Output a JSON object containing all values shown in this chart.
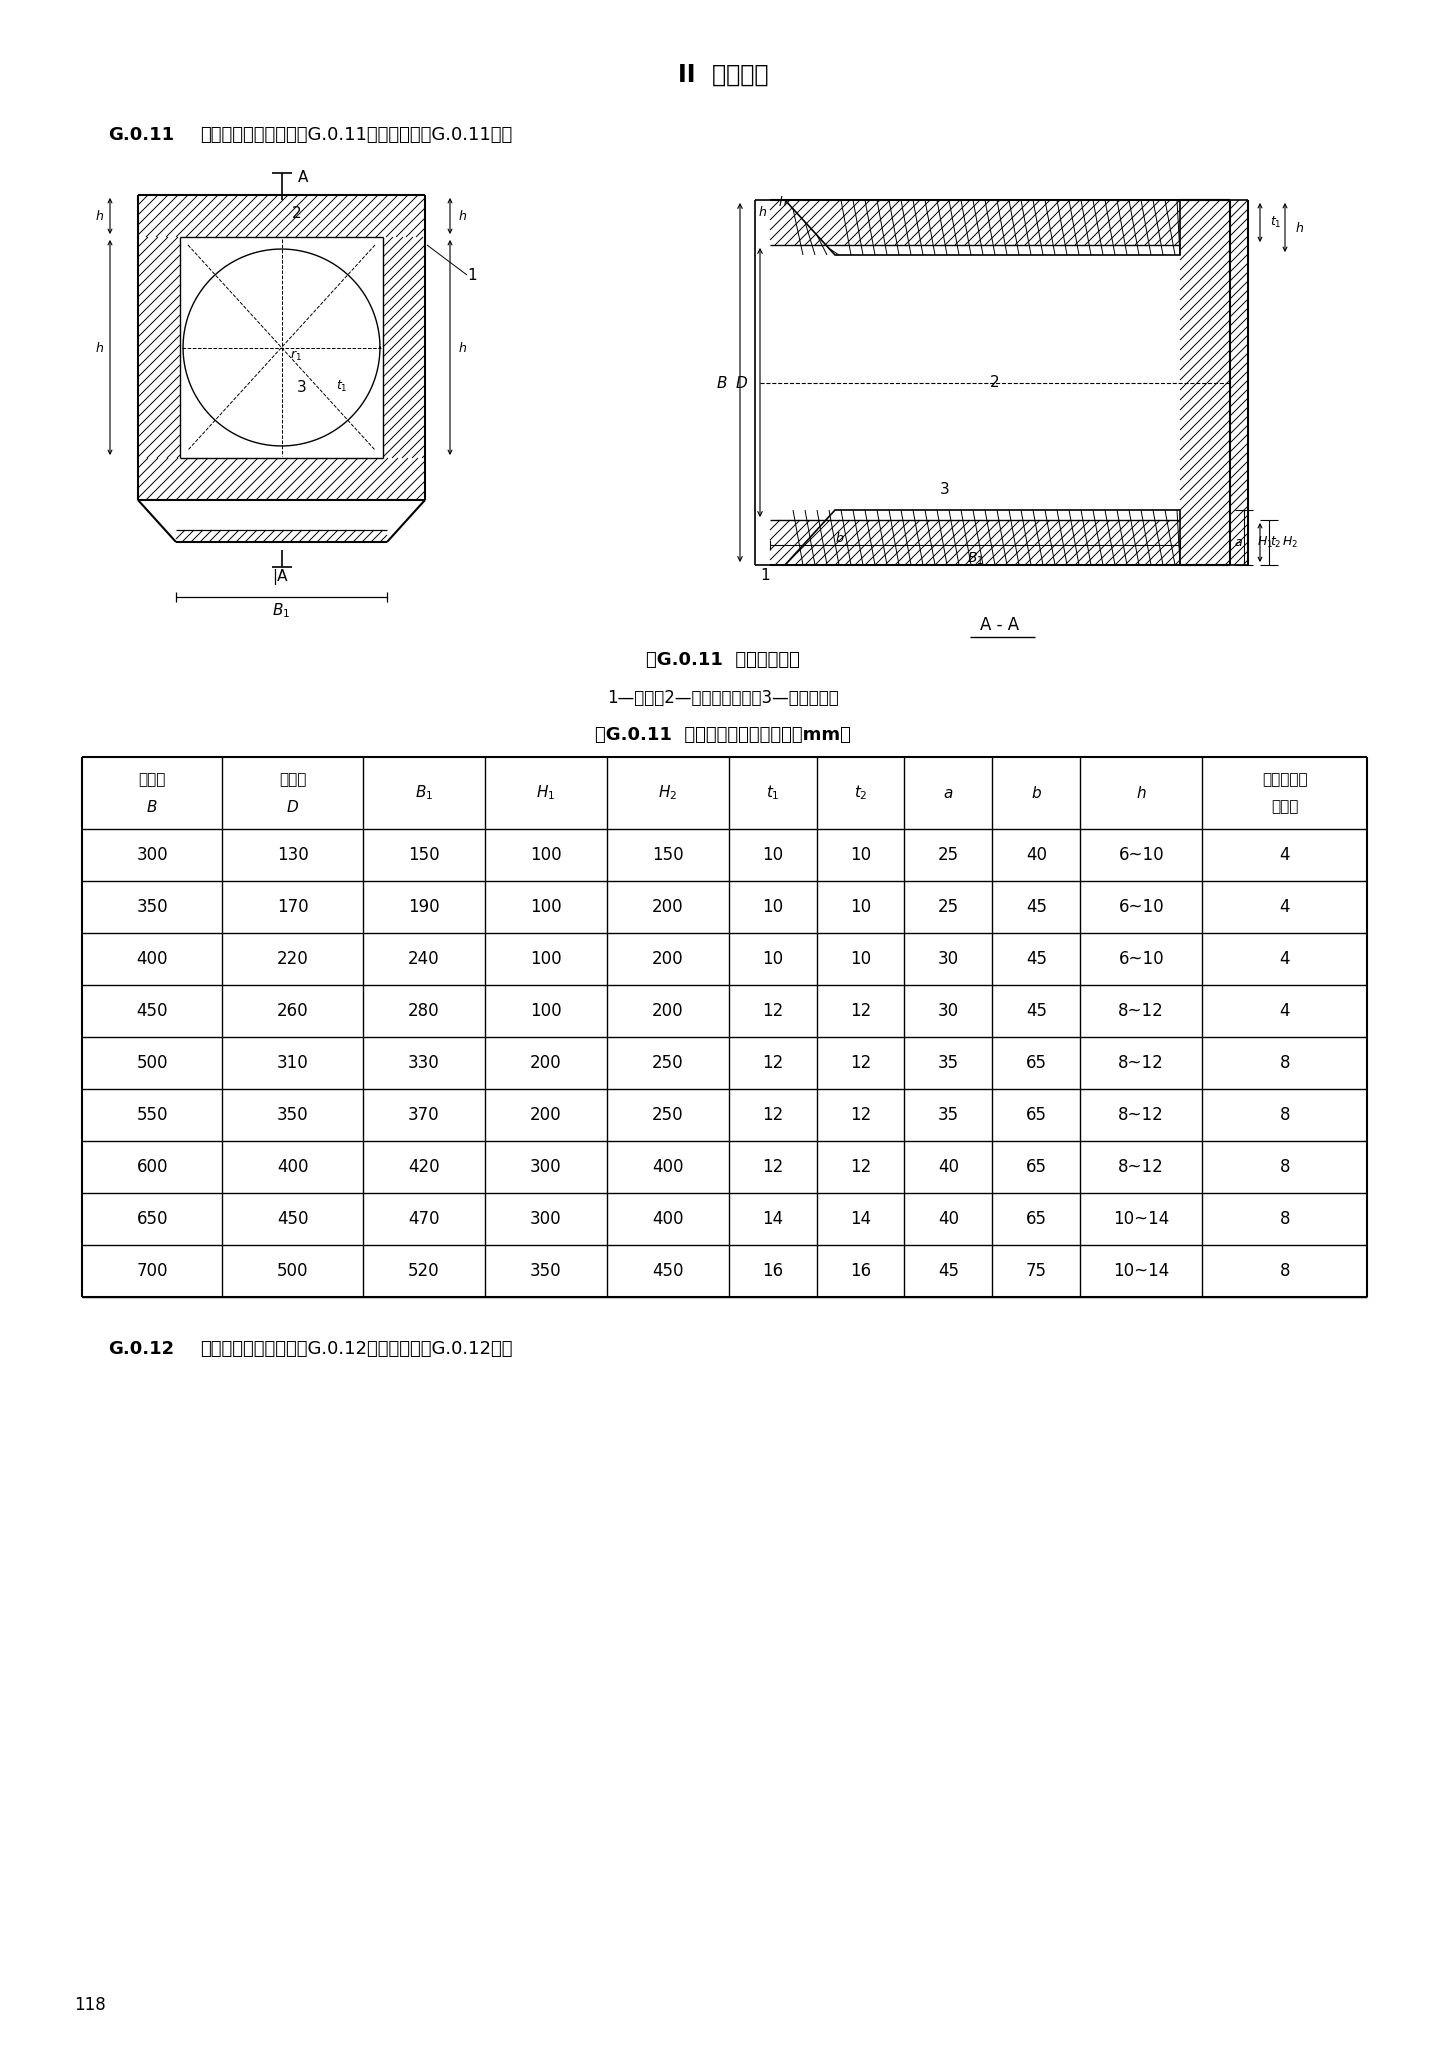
{
  "page_title": "II  空心方桩",
  "section_label": "G.0.11",
  "section_text": "开口型钉桩尖构造（图G.0.11）及尺寸（表G.0.11）：",
  "fig_caption": "图G.0.11  开口型钉桩尖",
  "fig_subcaption": "1—端板；2—梯形导向钉板；3—方形钉板筒",
  "table_title": "表G.0.11  开口型钉桩尖构造尺寸（mm）",
  "section2_label": "G.0.12",
  "section2_text": "十字型钉桩尖构造（图G.0.12）及尺寸（表G.0.12）：",
  "page_number": "118",
  "table_data": [
    [
      "300",
      "130",
      "150",
      "100",
      "150",
      "10",
      "10",
      "25",
      "40",
      "6~10",
      "4"
    ],
    [
      "350",
      "170",
      "190",
      "100",
      "200",
      "10",
      "10",
      "25",
      "45",
      "6~10",
      "4"
    ],
    [
      "400",
      "220",
      "240",
      "100",
      "200",
      "10",
      "10",
      "30",
      "45",
      "6~10",
      "4"
    ],
    [
      "450",
      "260",
      "280",
      "100",
      "200",
      "12",
      "12",
      "30",
      "45",
      "8~12",
      "4"
    ],
    [
      "500",
      "310",
      "330",
      "200",
      "250",
      "12",
      "12",
      "35",
      "65",
      "8~12",
      "8"
    ],
    [
      "550",
      "350",
      "370",
      "200",
      "250",
      "12",
      "12",
      "35",
      "65",
      "8~12",
      "8"
    ],
    [
      "600",
      "400",
      "420",
      "300",
      "400",
      "12",
      "12",
      "40",
      "65",
      "8~12",
      "8"
    ],
    [
      "650",
      "450",
      "470",
      "300",
      "400",
      "14",
      "14",
      "40",
      "65",
      "10~14",
      "8"
    ],
    [
      "700",
      "500",
      "520",
      "350",
      "450",
      "16",
      "16",
      "45",
      "75",
      "10~14",
      "8"
    ]
  ],
  "bg_color": "#ffffff",
  "text_color": "#000000"
}
